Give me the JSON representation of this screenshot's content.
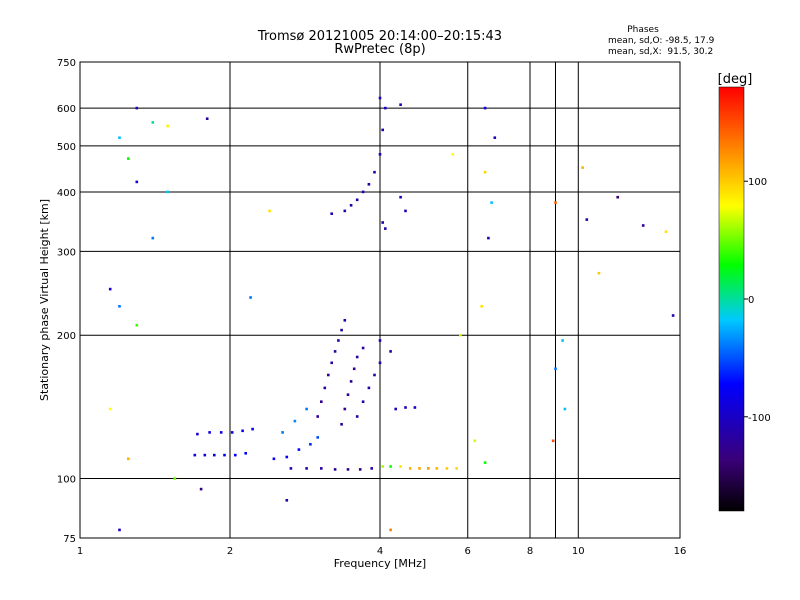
{
  "chart_data": {
    "type": "scatter",
    "title": "Tromsø 20121005 20:14:00–20:15:43",
    "subtitle": "RwPretec (8p)",
    "xlabel": "Frequency [MHz]",
    "ylabel": "Stationary phase Virtual Height [km]",
    "x_scale": "log",
    "y_scale": "log",
    "xlim": [
      1,
      16
    ],
    "ylim": [
      75,
      750
    ],
    "x_ticks": [
      1,
      2,
      4,
      6,
      8,
      9,
      10,
      16
    ],
    "x_tick_labels": [
      "1",
      "2",
      "4",
      "6",
      "8",
      "",
      "10",
      "16"
    ],
    "y_ticks": [
      75,
      100,
      200,
      300,
      400,
      500,
      600,
      750
    ],
    "y_tick_labels": [
      "75",
      "100",
      "200",
      "300",
      "400",
      "500",
      "600",
      "750"
    ],
    "grid": true,
    "phases": {
      "heading": "Phases",
      "line_o": "mean, sd,O: -98.5, 17.9",
      "line_x": "mean, sd,X:  91.5, 30.2"
    },
    "colorbar": {
      "label": "[deg]",
      "range": [
        -180,
        180
      ],
      "ticks": [
        100,
        0,
        -100
      ],
      "tick_labels": [
        "100",
        "0",
        "-100"
      ],
      "colormap": "rainbow"
    },
    "series": [
      {
        "points": [
          [
            1.7,
            112,
            -85
          ],
          [
            1.78,
            112,
            -85
          ],
          [
            1.86,
            112,
            -80
          ],
          [
            1.95,
            112,
            -80
          ],
          [
            2.05,
            112,
            -75
          ],
          [
            2.15,
            113,
            -70
          ],
          [
            1.72,
            124,
            -95
          ],
          [
            1.82,
            125,
            -90
          ],
          [
            1.92,
            125,
            -85
          ],
          [
            2.02,
            125,
            -85
          ],
          [
            2.12,
            126,
            -80
          ],
          [
            2.22,
            127,
            -78
          ],
          [
            2.45,
            110,
            -80
          ],
          [
            2.6,
            111,
            -75
          ],
          [
            2.75,
            115,
            -70
          ],
          [
            2.9,
            118,
            -60
          ],
          [
            3.0,
            122,
            -50
          ],
          [
            2.55,
            125,
            -40
          ],
          [
            2.7,
            132,
            -35
          ],
          [
            2.85,
            140,
            -40
          ],
          [
            2.65,
            105,
            -100
          ],
          [
            2.85,
            105,
            -110
          ],
          [
            3.05,
            105,
            -115
          ],
          [
            3.25,
            104.5,
            -125
          ],
          [
            3.45,
            104.5,
            -130
          ],
          [
            3.65,
            104.5,
            -130
          ],
          [
            3.85,
            105,
            -115
          ],
          [
            4.05,
            106,
            60
          ],
          [
            4.2,
            106,
            30
          ],
          [
            4.4,
            106,
            90
          ],
          [
            4.6,
            105,
            110
          ],
          [
            4.8,
            105,
            115
          ],
          [
            5.0,
            105,
            120
          ],
          [
            5.2,
            105,
            110
          ],
          [
            5.45,
            105,
            100
          ],
          [
            5.7,
            105,
            95
          ],
          [
            3.0,
            135,
            -120
          ],
          [
            3.05,
            145,
            -125
          ],
          [
            3.1,
            155,
            -125
          ],
          [
            3.15,
            165,
            -125
          ],
          [
            3.2,
            175,
            -120
          ],
          [
            3.25,
            185,
            -118
          ],
          [
            3.3,
            195,
            -118
          ],
          [
            3.35,
            205,
            -115
          ],
          [
            3.4,
            215,
            -112
          ],
          [
            3.35,
            130,
            -120
          ],
          [
            3.4,
            140,
            -125
          ],
          [
            3.45,
            150,
            -122
          ],
          [
            3.5,
            160,
            -125
          ],
          [
            3.55,
            170,
            -125
          ],
          [
            3.6,
            180,
            -122
          ],
          [
            3.7,
            188,
            -120
          ],
          [
            3.6,
            135,
            -115
          ],
          [
            3.7,
            145,
            -115
          ],
          [
            3.8,
            155,
            -118
          ],
          [
            3.9,
            165,
            -115
          ],
          [
            4.0,
            175,
            -112
          ],
          [
            4.3,
            140,
            -105
          ],
          [
            4.5,
            141,
            -105
          ],
          [
            4.7,
            141,
            -102
          ],
          [
            4.2,
            185,
            -110
          ],
          [
            4.0,
            195,
            -108
          ],
          [
            3.2,
            360,
            -110
          ],
          [
            3.4,
            365,
            -110
          ],
          [
            3.5,
            375,
            -115
          ],
          [
            3.6,
            385,
            -110
          ],
          [
            3.7,
            400,
            -110
          ],
          [
            3.8,
            415,
            -110
          ],
          [
            3.9,
            440,
            -110
          ],
          [
            4.0,
            480,
            -110
          ],
          [
            4.05,
            540,
            -110
          ],
          [
            4.1,
            600,
            -105
          ],
          [
            4.05,
            345,
            -110
          ],
          [
            4.1,
            335,
            -112
          ],
          [
            4.4,
            390,
            -105
          ],
          [
            4.5,
            365,
            -108
          ],
          [
            1.3,
            600,
            -105
          ],
          [
            1.4,
            560,
            0
          ],
          [
            1.5,
            550,
            85
          ],
          [
            1.8,
            570,
            -120
          ],
          [
            1.2,
            520,
            -20
          ],
          [
            1.25,
            470,
            30
          ],
          [
            1.3,
            420,
            -90
          ],
          [
            1.15,
            250,
            -95
          ],
          [
            1.2,
            230,
            -40
          ],
          [
            1.3,
            210,
            40
          ],
          [
            1.4,
            320,
            -40
          ],
          [
            1.5,
            400,
            -15
          ],
          [
            1.15,
            140,
            80
          ],
          [
            1.25,
            110,
            110
          ],
          [
            1.55,
            100,
            50
          ],
          [
            1.75,
            95,
            -130
          ],
          [
            2.2,
            240,
            -40
          ],
          [
            2.4,
            365,
            90
          ],
          [
            5.6,
            480,
            80
          ],
          [
            5.8,
            200,
            70
          ],
          [
            6.4,
            230,
            90
          ],
          [
            6.5,
            440,
            95
          ],
          [
            6.5,
            600,
            -90
          ],
          [
            6.8,
            520,
            -105
          ],
          [
            6.7,
            380,
            -20
          ],
          [
            6.6,
            320,
            -110
          ],
          [
            6.2,
            120,
            70
          ],
          [
            6.5,
            108,
            30
          ],
          [
            9.0,
            380,
            140
          ],
          [
            8.9,
            120,
            150
          ],
          [
            9.3,
            195,
            -20
          ],
          [
            10.2,
            450,
            110
          ],
          [
            10.4,
            350,
            -110
          ],
          [
            11.0,
            270,
            100
          ],
          [
            12.0,
            390,
            -140
          ],
          [
            13.5,
            340,
            -120
          ],
          [
            15.0,
            330,
            90
          ],
          [
            15.5,
            220,
            -110
          ],
          [
            9.0,
            170,
            -40
          ],
          [
            9.4,
            140,
            -20
          ],
          [
            4.0,
            630,
            -105
          ],
          [
            4.4,
            610,
            -105
          ],
          [
            1.2,
            78,
            -100
          ],
          [
            2.6,
            90,
            -110
          ],
          [
            4.2,
            78,
            130
          ]
        ]
      }
    ]
  }
}
